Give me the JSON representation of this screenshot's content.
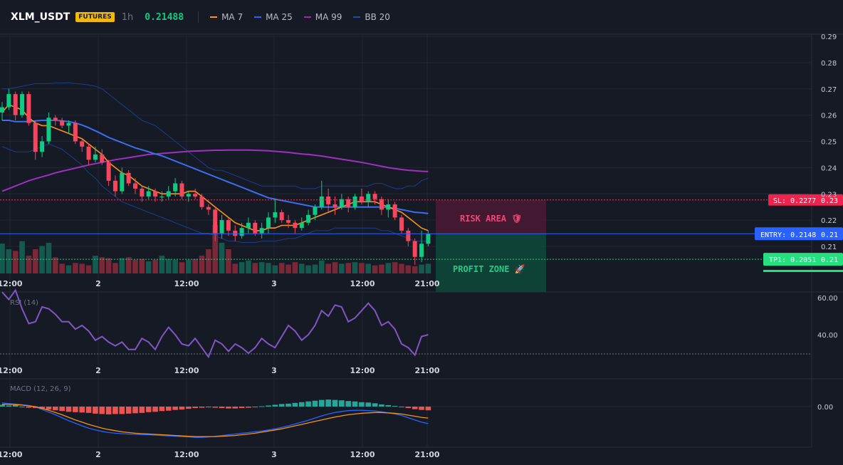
{
  "header": {
    "symbol": "XLM_USDT",
    "badge": "FUTURES",
    "timeframe": "1h",
    "price": "0.21488",
    "legend": [
      {
        "label": "MA 7",
        "color": "#f7931a"
      },
      {
        "label": "MA 25",
        "color": "#2962ff"
      },
      {
        "label": "MA 99",
        "color": "#9c27b0"
      },
      {
        "label": "BB 20",
        "color": "#1e4aa8"
      }
    ]
  },
  "colors": {
    "up": "#0ecb81",
    "down": "#f6465d",
    "ma7": "#f7931a",
    "ma25": "#3b6ff2",
    "ma99": "#a030c0",
    "bb": "#1f3c8a",
    "rsi": "#7e57c2",
    "macd": "#2962ff",
    "signal": "#f7931a",
    "hist_pos": "#26a69a",
    "hist_neg": "#ef5350"
  },
  "time_axis": [
    "12:00",
    "2",
    "12:00",
    "3",
    "12:00",
    "21:00"
  ],
  "price_axis": {
    "ticks": [
      0.29,
      0.28,
      0.27,
      0.26,
      0.25,
      0.24,
      0.23,
      0.22,
      0.21
    ],
    "labels": [
      "0.29",
      "0.28",
      "0.27",
      "0.26",
      "0.25",
      "0.24",
      "0.23",
      "0.22",
      "0.21"
    ]
  },
  "levels": {
    "sl": {
      "value": 0.2277,
      "label": "SL: 0.2277",
      "axis": "0.23"
    },
    "entry": {
      "value": 0.2148,
      "label": "ENTRY: 0.2148",
      "axis": "0.21"
    },
    "tp1": {
      "value": 0.2051,
      "label": "TP1: 0.2051",
      "axis": "0.21"
    }
  },
  "zones": {
    "risk": "RISK AREA 🛡",
    "profit": "PROFIT ZONE 🚀"
  },
  "rsi": {
    "title": "RSI (14)",
    "ticks": [
      60,
      40
    ],
    "labels": [
      "60.00",
      "40.00"
    ],
    "values": [
      63,
      59,
      64,
      54,
      46,
      47,
      55,
      54,
      51,
      47,
      47,
      43,
      45,
      42,
      37,
      39,
      36,
      34,
      36,
      32,
      32,
      38,
      36,
      32,
      39,
      44,
      40,
      35,
      34,
      38,
      33,
      28,
      37,
      35,
      31,
      35,
      33,
      30,
      33,
      38,
      35,
      33,
      39,
      45,
      42,
      37,
      40,
      45,
      53,
      50,
      56,
      55,
      47,
      49,
      53,
      57,
      53,
      45,
      47,
      43,
      35,
      33,
      29,
      39,
      40
    ]
  },
  "macd": {
    "title": "MACD (12, 26, 9)",
    "tick_label": "0.00",
    "hist": [
      0.0005,
      0.0003,
      0.0004,
      -0.0001,
      -0.0003,
      -0.0004,
      -0.0006,
      -0.0008,
      -0.001,
      -0.0012,
      -0.0014,
      -0.0015,
      -0.0016,
      -0.0017,
      -0.0019,
      -0.002,
      -0.0021,
      -0.002,
      -0.002,
      -0.0019,
      -0.0018,
      -0.0017,
      -0.0015,
      -0.0014,
      -0.0012,
      -0.0011,
      -0.0009,
      -0.0008,
      -0.0006,
      -0.0004,
      -0.0003,
      -0.0002,
      -0.0003,
      -0.0004,
      -0.0005,
      -0.0005,
      -0.0004,
      -0.0003,
      -0.0002,
      0.0001,
      0.0003,
      0.0005,
      0.0007,
      0.0008,
      0.001,
      0.0012,
      0.0014,
      0.0016,
      0.0018,
      0.0019,
      0.0018,
      0.0017,
      0.0015,
      0.0014,
      0.0012,
      0.0011,
      0.0009,
      0.0006,
      0.0004,
      0.0002,
      -0.0001,
      -0.0004,
      -0.0007,
      -0.0009,
      -0.001
    ],
    "macd_line": [
      0.001,
      0.0008,
      0.0007,
      0.0005,
      0.0003,
      -0.0001,
      -0.0008,
      -0.0015,
      -0.0022,
      -0.003,
      -0.0038,
      -0.0045,
      -0.0052,
      -0.0058,
      -0.0063,
      -0.0067,
      -0.007,
      -0.0072,
      -0.0073,
      -0.0074,
      -0.0075,
      -0.0076,
      -0.0076,
      -0.0077,
      -0.0078,
      -0.0079,
      -0.008,
      -0.0081,
      -0.0082,
      -0.0083,
      -0.0083,
      -0.0082,
      -0.008,
      -0.0078,
      -0.0076,
      -0.0074,
      -0.0072,
      -0.007,
      -0.0068,
      -0.0066,
      -0.0063,
      -0.006,
      -0.0056,
      -0.0052,
      -0.0047,
      -0.0042,
      -0.0037,
      -0.0031,
      -0.0025,
      -0.002,
      -0.0016,
      -0.0013,
      -0.0011,
      -0.001,
      -0.001,
      -0.0011,
      -0.0012,
      -0.0014,
      -0.0017,
      -0.002,
      -0.0024,
      -0.003,
      -0.0036,
      -0.0042,
      -0.0046
    ],
    "signal_line": [
      0.0006,
      0.0006,
      0.0005,
      0.0004,
      0.0002,
      0.0,
      -0.0005,
      -0.001,
      -0.0016,
      -0.0022,
      -0.0029,
      -0.0036,
      -0.0042,
      -0.0048,
      -0.0053,
      -0.0058,
      -0.0062,
      -0.0065,
      -0.0068,
      -0.007,
      -0.0072,
      -0.0073,
      -0.0074,
      -0.0075,
      -0.0076,
      -0.0077,
      -0.0078,
      -0.0079,
      -0.008,
      -0.0081,
      -0.0081,
      -0.0081,
      -0.0081,
      -0.008,
      -0.0079,
      -0.0078,
      -0.0076,
      -0.0074,
      -0.0072,
      -0.0069,
      -0.0066,
      -0.0063,
      -0.006,
      -0.0056,
      -0.0052,
      -0.0048,
      -0.0044,
      -0.004,
      -0.0036,
      -0.0032,
      -0.0028,
      -0.0025,
      -0.0022,
      -0.002,
      -0.0018,
      -0.0017,
      -0.0016,
      -0.0016,
      -0.0017,
      -0.0018,
      -0.002,
      -0.0023,
      -0.0026,
      -0.0029,
      -0.0031
    ]
  },
  "chart_data": {
    "type": "candlestick",
    "ylim": [
      0.2,
      0.29
    ],
    "candles": [
      [
        0.261,
        0.265,
        0.258,
        0.263
      ],
      [
        0.263,
        0.27,
        0.262,
        0.268
      ],
      [
        0.268,
        0.269,
        0.258,
        0.26
      ],
      [
        0.26,
        0.269,
        0.259,
        0.268
      ],
      [
        0.268,
        0.269,
        0.256,
        0.257
      ],
      [
        0.257,
        0.258,
        0.243,
        0.246
      ],
      [
        0.246,
        0.252,
        0.244,
        0.25
      ],
      [
        0.25,
        0.261,
        0.249,
        0.259
      ],
      [
        0.259,
        0.26,
        0.256,
        0.258
      ],
      [
        0.258,
        0.259,
        0.255,
        0.256
      ],
      [
        0.256,
        0.258,
        0.253,
        0.257
      ],
      [
        0.257,
        0.258,
        0.249,
        0.25
      ],
      [
        0.25,
        0.251,
        0.246,
        0.248
      ],
      [
        0.248,
        0.249,
        0.241,
        0.243
      ],
      [
        0.243,
        0.248,
        0.242,
        0.245
      ],
      [
        0.245,
        0.247,
        0.241,
        0.242
      ],
      [
        0.242,
        0.243,
        0.233,
        0.235
      ],
      [
        0.235,
        0.237,
        0.229,
        0.231
      ],
      [
        0.231,
        0.24,
        0.23,
        0.238
      ],
      [
        0.238,
        0.239,
        0.233,
        0.234
      ],
      [
        0.234,
        0.236,
        0.23,
        0.232
      ],
      [
        0.232,
        0.233,
        0.227,
        0.229
      ],
      [
        0.229,
        0.233,
        0.228,
        0.231
      ],
      [
        0.231,
        0.232,
        0.227,
        0.229
      ],
      [
        0.229,
        0.231,
        0.227,
        0.229
      ],
      [
        0.229,
        0.233,
        0.228,
        0.231
      ],
      [
        0.231,
        0.236,
        0.229,
        0.234
      ],
      [
        0.234,
        0.235,
        0.228,
        0.229
      ],
      [
        0.229,
        0.231,
        0.227,
        0.23
      ],
      [
        0.23,
        0.232,
        0.228,
        0.229
      ],
      [
        0.229,
        0.23,
        0.224,
        0.225
      ],
      [
        0.225,
        0.226,
        0.222,
        0.224
      ],
      [
        0.224,
        0.225,
        0.212,
        0.215
      ],
      [
        0.215,
        0.222,
        0.213,
        0.22
      ],
      [
        0.22,
        0.221,
        0.214,
        0.216
      ],
      [
        0.216,
        0.218,
        0.212,
        0.214
      ],
      [
        0.214,
        0.219,
        0.213,
        0.217
      ],
      [
        0.217,
        0.221,
        0.215,
        0.219
      ],
      [
        0.219,
        0.22,
        0.214,
        0.215
      ],
      [
        0.215,
        0.219,
        0.213,
        0.217
      ],
      [
        0.217,
        0.223,
        0.215,
        0.221
      ],
      [
        0.221,
        0.228,
        0.219,
        0.223
      ],
      [
        0.223,
        0.224,
        0.219,
        0.22
      ],
      [
        0.22,
        0.222,
        0.217,
        0.219
      ],
      [
        0.219,
        0.22,
        0.215,
        0.217
      ],
      [
        0.217,
        0.221,
        0.216,
        0.219
      ],
      [
        0.219,
        0.224,
        0.218,
        0.222
      ],
      [
        0.222,
        0.226,
        0.22,
        0.225
      ],
      [
        0.225,
        0.235,
        0.224,
        0.229
      ],
      [
        0.229,
        0.232,
        0.223,
        0.226
      ],
      [
        0.226,
        0.229,
        0.222,
        0.225
      ],
      [
        0.225,
        0.23,
        0.224,
        0.228
      ],
      [
        0.228,
        0.229,
        0.223,
        0.225
      ],
      [
        0.225,
        0.23,
        0.224,
        0.229
      ],
      [
        0.229,
        0.232,
        0.226,
        0.227
      ],
      [
        0.227,
        0.231,
        0.225,
        0.23
      ],
      [
        0.23,
        0.231,
        0.226,
        0.228
      ],
      [
        0.228,
        0.229,
        0.222,
        0.224
      ],
      [
        0.224,
        0.228,
        0.221,
        0.226
      ],
      [
        0.226,
        0.227,
        0.22,
        0.221
      ],
      [
        0.221,
        0.222,
        0.215,
        0.216
      ],
      [
        0.216,
        0.217,
        0.21,
        0.212
      ],
      [
        0.212,
        0.213,
        0.203,
        0.206
      ],
      [
        0.206,
        0.216,
        0.204,
        0.211
      ],
      [
        0.211,
        0.216,
        0.21,
        0.2149
      ]
    ],
    "volume": [
      37,
      30,
      28,
      40,
      22,
      30,
      34,
      38,
      20,
      12,
      10,
      13,
      12,
      10,
      22,
      20,
      19,
      13,
      19,
      20,
      17,
      18,
      15,
      17,
      22,
      18,
      17,
      14,
      17,
      18,
      22,
      30,
      60,
      38,
      30,
      12,
      14,
      16,
      13,
      14,
      13,
      10,
      13,
      11,
      14,
      12,
      10,
      11,
      16,
      12,
      14,
      12,
      13,
      14,
      13,
      12,
      10,
      11,
      13,
      14,
      12,
      10,
      9,
      11,
      12
    ],
    "ma7": [
      0.261,
      0.264,
      0.263,
      0.262,
      0.259,
      0.257,
      0.256,
      0.256,
      0.255,
      0.254,
      0.253,
      0.252,
      0.251,
      0.249,
      0.247,
      0.245,
      0.242,
      0.24,
      0.238,
      0.237,
      0.235,
      0.233,
      0.232,
      0.231,
      0.23,
      0.23,
      0.23,
      0.23,
      0.231,
      0.231,
      0.229,
      0.227,
      0.225,
      0.223,
      0.221,
      0.219,
      0.218,
      0.217,
      0.216,
      0.216,
      0.217,
      0.217,
      0.218,
      0.218,
      0.218,
      0.219,
      0.22,
      0.221,
      0.222,
      0.223,
      0.224,
      0.225,
      0.226,
      0.227,
      0.227,
      0.227,
      0.227,
      0.226,
      0.225,
      0.224,
      0.223,
      0.221,
      0.219,
      0.217,
      0.216
    ],
    "ma25": [
      0.258,
      0.258,
      0.2575,
      0.2575,
      0.2575,
      0.2578,
      0.258,
      0.258,
      0.258,
      0.2578,
      0.2575,
      0.257,
      0.2562,
      0.2552,
      0.254,
      0.2528,
      0.2515,
      0.2505,
      0.2495,
      0.2485,
      0.2475,
      0.2468,
      0.246,
      0.2452,
      0.2445,
      0.2435,
      0.2425,
      0.2415,
      0.2405,
      0.2395,
      0.2385,
      0.2375,
      0.2365,
      0.2355,
      0.2345,
      0.2335,
      0.2325,
      0.2315,
      0.2305,
      0.2295,
      0.2285,
      0.228,
      0.2275,
      0.227,
      0.2265,
      0.226,
      0.2255,
      0.225,
      0.225,
      0.225,
      0.225,
      0.225,
      0.225,
      0.225,
      0.225,
      0.225,
      0.225,
      0.225,
      0.2248,
      0.2245,
      0.224,
      0.2235,
      0.223,
      0.2228,
      0.2225
    ],
    "ma99": [
      0.231,
      0.232,
      0.233,
      0.234,
      0.235,
      0.2358,
      0.2365,
      0.2372,
      0.238,
      0.2386,
      0.2392,
      0.2398,
      0.2404,
      0.241,
      0.2415,
      0.242,
      0.2425,
      0.243,
      0.2434,
      0.2438,
      0.2442,
      0.2446,
      0.245,
      0.2452,
      0.2454,
      0.2456,
      0.2458,
      0.246,
      0.2462,
      0.2463,
      0.2464,
      0.2465,
      0.2466,
      0.2466,
      0.2467,
      0.2467,
      0.2467,
      0.2467,
      0.2466,
      0.2465,
      0.2464,
      0.2462,
      0.246,
      0.2458,
      0.2455,
      0.2452,
      0.245,
      0.2447,
      0.2444,
      0.244,
      0.2436,
      0.2432,
      0.2428,
      0.2424,
      0.242,
      0.2415,
      0.241,
      0.2405,
      0.24,
      0.2396,
      0.2393,
      0.239,
      0.2388,
      0.2386,
      0.2385
    ],
    "bb_upper": [
      0.27,
      0.27,
      0.2705,
      0.271,
      0.2715,
      0.272,
      0.272,
      0.272,
      0.2722,
      0.2722,
      0.2723,
      0.272,
      0.2718,
      0.2715,
      0.271,
      0.27,
      0.268,
      0.266,
      0.264,
      0.262,
      0.26,
      0.258,
      0.257,
      0.256,
      0.254,
      0.252,
      0.25,
      0.248,
      0.246,
      0.244,
      0.242,
      0.24,
      0.239,
      0.239,
      0.238,
      0.237,
      0.236,
      0.235,
      0.234,
      0.233,
      0.233,
      0.233,
      0.233,
      0.233,
      0.233,
      0.232,
      0.232,
      0.232,
      0.233,
      0.233,
      0.233,
      0.233,
      0.233,
      0.233,
      0.233,
      0.233,
      0.234,
      0.234,
      0.233,
      0.232,
      0.232,
      0.233,
      0.233,
      0.235,
      0.236
    ],
    "bb_lower": [
      0.248,
      0.247,
      0.246,
      0.246,
      0.246,
      0.247,
      0.248,
      0.249,
      0.248,
      0.247,
      0.245,
      0.243,
      0.241,
      0.238,
      0.236,
      0.233,
      0.231,
      0.229,
      0.227,
      0.226,
      0.225,
      0.224,
      0.223,
      0.222,
      0.221,
      0.22,
      0.219,
      0.218,
      0.217,
      0.216,
      0.215,
      0.215,
      0.214,
      0.213,
      0.212,
      0.212,
      0.2115,
      0.2115,
      0.2115,
      0.212,
      0.212,
      0.212,
      0.2125,
      0.213,
      0.213,
      0.214,
      0.215,
      0.216,
      0.216,
      0.216,
      0.217,
      0.217,
      0.217,
      0.217,
      0.217,
      0.217,
      0.217,
      0.216,
      0.216,
      0.215,
      0.214,
      0.213,
      0.212,
      0.212,
      0.212
    ]
  }
}
